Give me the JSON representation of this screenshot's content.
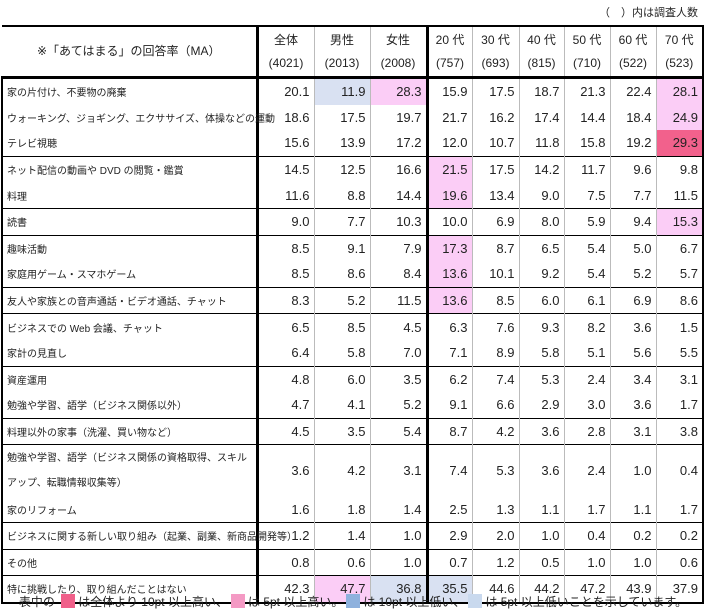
{
  "note": "（　）内は調査人数",
  "header": {
    "label": "※「あてはまる」の回答率（MA）",
    "columns": [
      {
        "name": "全体",
        "n": "(4021)"
      },
      {
        "name": "男性",
        "n": "(2013)"
      },
      {
        "name": "女性",
        "n": "(2008)"
      },
      {
        "name": "20 代",
        "n": "(757)"
      },
      {
        "name": "30 代",
        "n": "(693)"
      },
      {
        "name": "40 代",
        "n": "(815)"
      },
      {
        "name": "50 代",
        "n": "(710)"
      },
      {
        "name": "60 代",
        "n": "(522)"
      },
      {
        "name": "70 代",
        "n": "(523)"
      }
    ]
  },
  "highlight_colors": {
    "p": "#fbcdf6",
    "P": "#f2618c",
    "b": "#d9e1f2"
  },
  "rows": [
    {
      "label": "家の片付け、不要物の廃棄",
      "values": [
        "20.1",
        "11.9",
        "28.3",
        "15.9",
        "17.5",
        "18.7",
        "21.3",
        "22.4",
        "28.1"
      ],
      "hl": [
        "",
        "b",
        "p",
        "",
        "",
        "",
        "",
        "",
        "p"
      ],
      "group_start": true
    },
    {
      "label": "ウォーキング、ジョギング、エクササイズ、体操などの運動",
      "values": [
        "18.6",
        "17.5",
        "19.7",
        "21.7",
        "16.2",
        "17.4",
        "14.4",
        "18.4",
        "24.9"
      ],
      "hl": [
        "",
        "",
        "",
        "",
        "",
        "",
        "",
        "",
        "p"
      ]
    },
    {
      "label": "テレビ視聴",
      "values": [
        "15.6",
        "13.9",
        "17.2",
        "12.0",
        "10.7",
        "11.8",
        "15.8",
        "19.2",
        "29.3"
      ],
      "hl": [
        "",
        "",
        "",
        "",
        "",
        "",
        "",
        "",
        "P"
      ]
    },
    {
      "label": "ネット配信の動画や DVD の閲覧・鑑賞",
      "values": [
        "14.5",
        "12.5",
        "16.6",
        "21.5",
        "17.5",
        "14.2",
        "11.7",
        "9.6",
        "9.8"
      ],
      "hl": [
        "",
        "",
        "",
        "p",
        "",
        "",
        "",
        "",
        ""
      ],
      "group_start": true
    },
    {
      "label": "料理",
      "values": [
        "11.6",
        "8.8",
        "14.4",
        "19.6",
        "13.4",
        "9.0",
        "7.5",
        "7.7",
        "11.5"
      ],
      "hl": [
        "",
        "",
        "",
        "p",
        "",
        "",
        "",
        "",
        ""
      ]
    },
    {
      "label": "読書",
      "values": [
        "9.0",
        "7.7",
        "10.3",
        "10.0",
        "6.9",
        "8.0",
        "5.9",
        "9.4",
        "15.3"
      ],
      "hl": [
        "",
        "",
        "",
        "",
        "",
        "",
        "",
        "",
        "p"
      ],
      "group_start": true
    },
    {
      "label": "趣味活動",
      "values": [
        "8.5",
        "9.1",
        "7.9",
        "17.3",
        "8.7",
        "6.5",
        "5.4",
        "5.0",
        "6.7"
      ],
      "hl": [
        "",
        "",
        "",
        "p",
        "",
        "",
        "",
        "",
        ""
      ],
      "group_start": true
    },
    {
      "label": "家庭用ゲーム・スマホゲーム",
      "values": [
        "8.5",
        "8.6",
        "8.4",
        "13.6",
        "10.1",
        "9.2",
        "5.4",
        "5.2",
        "5.7"
      ],
      "hl": [
        "",
        "",
        "",
        "p",
        "",
        "",
        "",
        "",
        ""
      ]
    },
    {
      "label": "友人や家族との音声通話・ビデオ通話、チャット",
      "values": [
        "8.3",
        "5.2",
        "11.5",
        "13.6",
        "8.5",
        "6.0",
        "6.1",
        "6.9",
        "8.6"
      ],
      "hl": [
        "",
        "",
        "",
        "p",
        "",
        "",
        "",
        "",
        ""
      ],
      "group_start": true
    },
    {
      "label": "ビジネスでの Web 会議、チャット",
      "values": [
        "6.5",
        "8.5",
        "4.5",
        "6.3",
        "7.6",
        "9.3",
        "8.2",
        "3.6",
        "1.5"
      ],
      "hl": [
        "",
        "",
        "",
        "",
        "",
        "",
        "",
        "",
        ""
      ],
      "group_start": true
    },
    {
      "label": "家計の見直し",
      "values": [
        "6.4",
        "5.8",
        "7.0",
        "7.1",
        "8.9",
        "5.8",
        "5.1",
        "5.6",
        "5.5"
      ],
      "hl": [
        "",
        "",
        "",
        "",
        "",
        "",
        "",
        "",
        ""
      ]
    },
    {
      "label": "資産運用",
      "values": [
        "4.8",
        "6.0",
        "3.5",
        "6.2",
        "7.4",
        "5.3",
        "2.4",
        "3.4",
        "3.1"
      ],
      "hl": [
        "",
        "",
        "",
        "",
        "",
        "",
        "",
        "",
        ""
      ],
      "group_start": true
    },
    {
      "label": "勉強や学習、語学（ビジネス関係以外）",
      "values": [
        "4.7",
        "4.1",
        "5.2",
        "9.1",
        "6.6",
        "2.9",
        "3.0",
        "3.6",
        "1.7"
      ],
      "hl": [
        "",
        "",
        "",
        "",
        "",
        "",
        "",
        "",
        ""
      ]
    },
    {
      "label": "料理以外の家事（洗濯、買い物など）",
      "values": [
        "4.5",
        "3.5",
        "5.4",
        "8.7",
        "4.2",
        "3.6",
        "2.8",
        "3.1",
        "3.8"
      ],
      "hl": [
        "",
        "",
        "",
        "",
        "",
        "",
        "",
        "",
        ""
      ],
      "group_start": true
    },
    {
      "label": "勉強や学習、語学（ビジネス関係の資格取得、スキルアップ、転職情報収集等）",
      "values": [
        "3.6",
        "4.2",
        "3.1",
        "7.4",
        "5.3",
        "3.6",
        "2.4",
        "1.0",
        "0.4"
      ],
      "hl": [
        "",
        "",
        "",
        "",
        "",
        "",
        "",
        "",
        ""
      ],
      "group_start": true,
      "tall": true
    },
    {
      "label": "家のリフォーム",
      "values": [
        "1.6",
        "1.8",
        "1.4",
        "2.5",
        "1.3",
        "1.1",
        "1.7",
        "1.1",
        "1.7"
      ],
      "hl": [
        "",
        "",
        "",
        "",
        "",
        "",
        "",
        "",
        ""
      ]
    },
    {
      "label": "ビジネスに関する新しい取り組み（起業、副業、新商品開発等）",
      "values": [
        "1.2",
        "1.4",
        "1.0",
        "2.9",
        "2.0",
        "1.0",
        "0.4",
        "0.2",
        "0.2"
      ],
      "hl": [
        "",
        "",
        "",
        "",
        "",
        "",
        "",
        "",
        ""
      ],
      "group_start": true
    },
    {
      "label": "その他",
      "values": [
        "0.8",
        "0.6",
        "1.0",
        "0.7",
        "1.2",
        "0.5",
        "1.0",
        "1.0",
        "0.6"
      ],
      "hl": [
        "",
        "",
        "",
        "",
        "",
        "",
        "",
        "",
        ""
      ],
      "group_start": true
    },
    {
      "label": "特に挑戦したり、取り組んだことはない",
      "values": [
        "42.3",
        "47.7",
        "36.8",
        "35.5",
        "44.6",
        "44.2",
        "47.2",
        "43.9",
        "37.9"
      ],
      "hl": [
        "",
        "p",
        "b",
        "b",
        "",
        "",
        "",
        "",
        ""
      ],
      "group_start": true
    }
  ],
  "legend": {
    "prefix": "表中の",
    "items": [
      {
        "color": "#f0608a",
        "text": "は全体より 10pt 以上高い、"
      },
      {
        "color": "#f49ac4",
        "text": "は 5pt 以上高い。"
      },
      {
        "color": "#8eb1dd",
        "text": "は 10pt 以上低い、"
      },
      {
        "color": "#c9d9ee",
        "text": "は 5pt 以上低いことを示しています。"
      }
    ]
  }
}
